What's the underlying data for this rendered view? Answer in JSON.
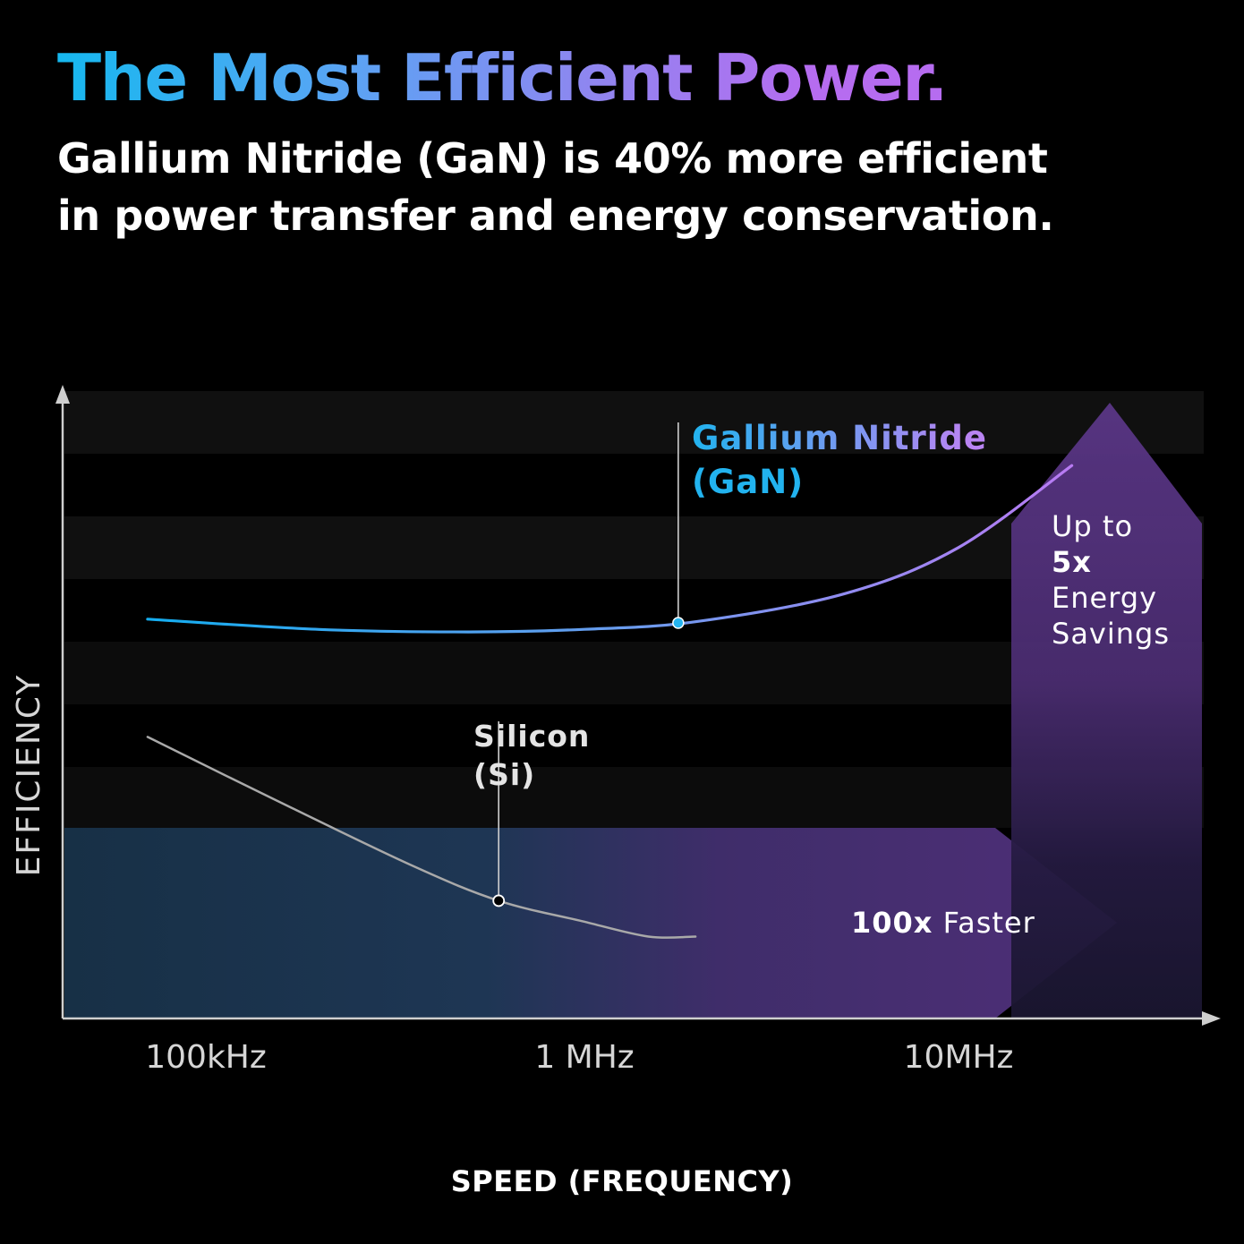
{
  "header": {
    "title": "The Most Efficient Power.",
    "subtitle_line1": "Gallium Nitride (GaN) is 40% more efficient",
    "subtitle_line2": "in power transfer and energy conservation."
  },
  "colors": {
    "background": "#000000",
    "gan_start": "#12aef0",
    "gan_end": "#c476f4",
    "silicon": "#a9a9a9",
    "purple": "#55307a",
    "teal": "#1e3a5c"
  },
  "chart_data": {
    "type": "line",
    "xlabel": "SPEED (FREQUENCY)",
    "ylabel": "EFFICIENCY",
    "x_scale": "log",
    "x_ticks": [
      {
        "label": "100kHz",
        "value": 100000
      },
      {
        "label": "1 MHz",
        "value": 1000000
      },
      {
        "label": "10MHz",
        "value": 10000000
      }
    ],
    "series": [
      {
        "name": "Gallium Nitride (GaN)",
        "label_line1": "Gallium Nitride",
        "label_line2": "(GaN)",
        "points": [
          [
            70000,
            0.78
          ],
          [
            200000,
            0.76
          ],
          [
            500000,
            0.755
          ],
          [
            1000000,
            0.76
          ],
          [
            2000000,
            0.775
          ],
          [
            5000000,
            0.83
          ],
          [
            10000000,
            0.92
          ],
          [
            20000000,
            1.08
          ]
        ],
        "marker_x": 1800000
      },
      {
        "name": "Silicon (Si)",
        "label_line1": "Silicon",
        "label_line2": "(Si)",
        "points": [
          [
            70000,
            0.55
          ],
          [
            150000,
            0.43
          ],
          [
            350000,
            0.3
          ],
          [
            600000,
            0.23
          ],
          [
            1000000,
            0.19
          ],
          [
            1500000,
            0.16
          ],
          [
            2000000,
            0.16
          ]
        ],
        "marker_x": 600000
      }
    ],
    "annotations": {
      "right_arrow": {
        "bold": "100x",
        "text": " Faster"
      },
      "up_arrow": {
        "line1": "Up to",
        "line2": "5x",
        "line3": "Energy",
        "line4": "Savings"
      }
    },
    "grid": "horizontal bands",
    "legend": "none"
  }
}
